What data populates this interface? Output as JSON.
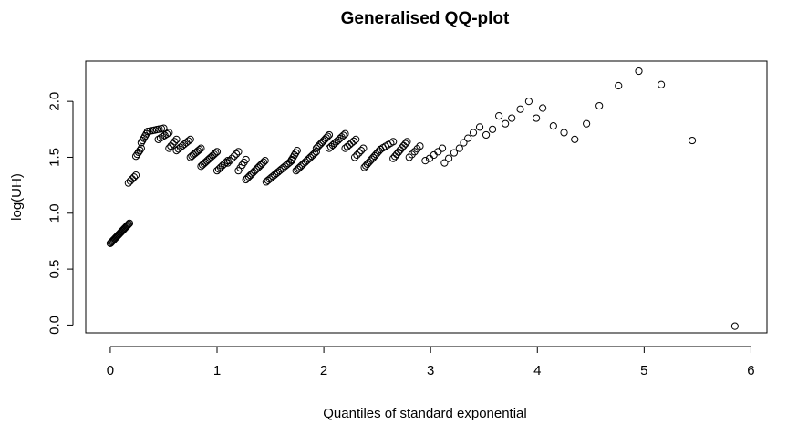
{
  "chart_data": {
    "type": "scatter",
    "title": "Generalised QQ-plot",
    "xlabel": "Quantiles of standard exponential",
    "ylabel": "log(UH)",
    "xlim": [
      -0.23,
      6.15
    ],
    "ylim": [
      -0.07,
      2.36
    ],
    "x_ticks": [
      0,
      1,
      2,
      3,
      4,
      5,
      6
    ],
    "x_tick_labels": [
      "0",
      "1",
      "2",
      "3",
      "4",
      "5",
      "6"
    ],
    "y_ticks": [
      0.0,
      0.5,
      1.0,
      1.5,
      2.0
    ],
    "y_tick_labels": [
      "0.0",
      "0.5",
      "1.0",
      "1.5",
      "2.0"
    ],
    "grid": false,
    "marker": "open-circle",
    "segments": [
      {
        "x": [
          0.0,
          0.18
        ],
        "y": [
          0.73,
          0.91
        ],
        "n": 24
      },
      {
        "x": [
          0.17,
          0.24
        ],
        "y": [
          1.27,
          1.34
        ],
        "n": 5
      },
      {
        "x": [
          0.24,
          0.29
        ],
        "y": [
          1.51,
          1.58
        ],
        "n": 5
      },
      {
        "x": [
          0.29,
          0.35
        ],
        "y": [
          1.63,
          1.73
        ],
        "n": 6
      },
      {
        "x": [
          0.35,
          0.5
        ],
        "y": [
          1.73,
          1.76
        ],
        "n": 8
      },
      {
        "x": [
          0.45,
          0.55
        ],
        "y": [
          1.66,
          1.72
        ],
        "n": 6
      },
      {
        "x": [
          0.55,
          0.62
        ],
        "y": [
          1.58,
          1.66
        ],
        "n": 5
      },
      {
        "x": [
          0.62,
          0.75
        ],
        "y": [
          1.56,
          1.66
        ],
        "n": 8
      },
      {
        "x": [
          0.75,
          0.85
        ],
        "y": [
          1.5,
          1.58
        ],
        "n": 8
      },
      {
        "x": [
          0.85,
          1.0
        ],
        "y": [
          1.42,
          1.55
        ],
        "n": 12
      },
      {
        "x": [
          1.0,
          1.1
        ],
        "y": [
          1.38,
          1.47
        ],
        "n": 7
      },
      {
        "x": [
          1.1,
          1.2
        ],
        "y": [
          1.45,
          1.55
        ],
        "n": 6
      },
      {
        "x": [
          1.2,
          1.27
        ],
        "y": [
          1.38,
          1.48
        ],
        "n": 5
      },
      {
        "x": [
          1.27,
          1.45
        ],
        "y": [
          1.3,
          1.47
        ],
        "n": 14
      },
      {
        "x": [
          1.46,
          1.7
        ],
        "y": [
          1.28,
          1.47
        ],
        "n": 16
      },
      {
        "x": [
          1.7,
          1.75
        ],
        "y": [
          1.48,
          1.56
        ],
        "n": 5
      },
      {
        "x": [
          1.74,
          1.93
        ],
        "y": [
          1.38,
          1.55
        ],
        "n": 14
      },
      {
        "x": [
          1.93,
          2.05
        ],
        "y": [
          1.58,
          1.7
        ],
        "n": 10
      },
      {
        "x": [
          2.05,
          2.2
        ],
        "y": [
          1.58,
          1.71
        ],
        "n": 10
      },
      {
        "x": [
          2.2,
          2.3
        ],
        "y": [
          1.58,
          1.66
        ],
        "n": 6
      },
      {
        "x": [
          2.29,
          2.37
        ],
        "y": [
          1.5,
          1.58
        ],
        "n": 5
      },
      {
        "x": [
          2.38,
          2.53
        ],
        "y": [
          1.41,
          1.57
        ],
        "n": 12
      },
      {
        "x": [
          2.53,
          2.65
        ],
        "y": [
          1.57,
          1.64
        ],
        "n": 6
      },
      {
        "x": [
          2.65,
          2.78
        ],
        "y": [
          1.49,
          1.64
        ],
        "n": 9
      },
      {
        "x": [
          2.8,
          2.9
        ],
        "y": [
          1.5,
          1.6
        ],
        "n": 5
      }
    ],
    "points": [
      {
        "x": 2.95,
        "y": 1.47
      },
      {
        "x": 2.99,
        "y": 1.49
      },
      {
        "x": 3.03,
        "y": 1.52
      },
      {
        "x": 3.07,
        "y": 1.55
      },
      {
        "x": 3.11,
        "y": 1.58
      },
      {
        "x": 3.13,
        "y": 1.45
      },
      {
        "x": 3.17,
        "y": 1.49
      },
      {
        "x": 3.22,
        "y": 1.54
      },
      {
        "x": 3.27,
        "y": 1.58
      },
      {
        "x": 3.31,
        "y": 1.63
      },
      {
        "x": 3.35,
        "y": 1.67
      },
      {
        "x": 3.4,
        "y": 1.72
      },
      {
        "x": 3.46,
        "y": 1.77
      },
      {
        "x": 3.52,
        "y": 1.7
      },
      {
        "x": 3.58,
        "y": 1.75
      },
      {
        "x": 3.64,
        "y": 1.87
      },
      {
        "x": 3.7,
        "y": 1.8
      },
      {
        "x": 3.76,
        "y": 1.85
      },
      {
        "x": 3.84,
        "y": 1.93
      },
      {
        "x": 3.92,
        "y": 2.0
      },
      {
        "x": 3.99,
        "y": 1.85
      },
      {
        "x": 4.05,
        "y": 1.94
      },
      {
        "x": 4.15,
        "y": 1.78
      },
      {
        "x": 4.25,
        "y": 1.72
      },
      {
        "x": 4.35,
        "y": 1.66
      },
      {
        "x": 4.46,
        "y": 1.8
      },
      {
        "x": 4.58,
        "y": 1.96
      },
      {
        "x": 4.76,
        "y": 2.14
      },
      {
        "x": 4.95,
        "y": 2.27
      },
      {
        "x": 5.16,
        "y": 2.15
      },
      {
        "x": 5.45,
        "y": 1.65
      },
      {
        "x": 5.85,
        "y": -0.01
      }
    ]
  }
}
